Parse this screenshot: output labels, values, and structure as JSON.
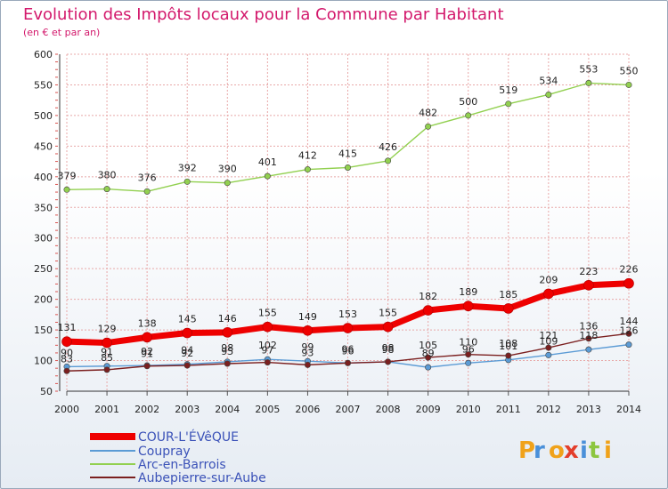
{
  "chart_data": {
    "type": "line",
    "title": "Evolution des Impôts locaux pour la Commune par Habitant",
    "subtitle": "(en € et par an)",
    "xlabel": "",
    "ylabel": "",
    "ylim": [
      50,
      600
    ],
    "yticks": [
      50,
      100,
      150,
      200,
      250,
      300,
      350,
      400,
      450,
      500,
      550,
      600
    ],
    "grid": true,
    "x": [
      "2000",
      "2001",
      "2002",
      "2003",
      "2004",
      "2005",
      "2006",
      "2007",
      "2008",
      "2009",
      "2010",
      "2011",
      "2012",
      "2013",
      "2014"
    ],
    "series": [
      {
        "name": "COUR-L'ÉVêQUE",
        "color": "#ee0000",
        "values": [
          131,
          129,
          138,
          145,
          146,
          155,
          149,
          153,
          155,
          182,
          189,
          185,
          209,
          223,
          226
        ],
        "labels": [
          "131",
          "129",
          "138",
          "145",
          "146",
          "155",
          "149",
          "153",
          "155",
          "182",
          "189",
          "185",
          "209",
          "223",
          "226"
        ]
      },
      {
        "name": "Coupray",
        "color": "#5b9bd5",
        "values": [
          90,
          91,
          92,
          94,
          98,
          102,
          99,
          96,
          98,
          89,
          96,
          101,
          109,
          118,
          126
        ],
        "labels": [
          "90",
          "91",
          "92",
          "94",
          "98",
          "102",
          "99",
          "96",
          "98",
          "89",
          "96",
          "101",
          "109",
          "118",
          "126"
        ]
      },
      {
        "name": "Arc-en-Barrois",
        "color": "#92d050",
        "values": [
          379,
          380,
          376,
          392,
          390,
          401,
          412,
          415,
          426,
          482,
          500,
          519,
          534,
          553,
          550
        ],
        "labels": [
          "379",
          "380",
          "376",
          "392",
          "390",
          "401",
          "412",
          "415",
          "426",
          "482",
          "500",
          "519",
          "534",
          "553",
          "550"
        ]
      },
      {
        "name": "Aubepierre-sur-Aube",
        "color": "#7b1f1f",
        "values": [
          83,
          85,
          91,
          92,
          95,
          97,
          93,
          96,
          98,
          105,
          110,
          108,
          121,
          136,
          144
        ],
        "labels": [
          "83",
          "85",
          "91",
          "92",
          "95",
          "97",
          "93",
          "96",
          "98",
          "105",
          "110",
          "108",
          "121",
          "136",
          "144"
        ]
      }
    ],
    "legend_position": "bottom-left"
  },
  "brand": {
    "name": "Proxiti",
    "letters": [
      "P",
      "r",
      "o",
      "x",
      "i",
      "t",
      "i"
    ],
    "colors": [
      "#f0a21a",
      "#4a90d9",
      "#f0a21a",
      "#e33e2b",
      "#4a90d9",
      "#8cc63f",
      "#f0a21a"
    ]
  },
  "colors": {
    "title": "#d3196c",
    "grid": "#e8a8a8",
    "axis": "#555555"
  }
}
